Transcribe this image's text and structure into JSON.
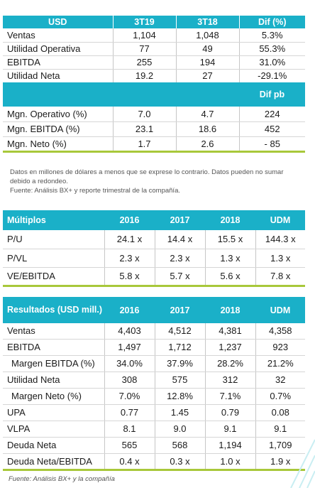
{
  "quarterly": {
    "headers": [
      "USD",
      "3T19",
      "3T18",
      "Dif (%)"
    ],
    "rows": [
      {
        "label": "Ventas",
        "v1": "1,104",
        "v2": "1,048",
        "v3": "5.3%"
      },
      {
        "label": "Utilidad Operativa",
        "v1": "77",
        "v2": "49",
        "v3": "55.3%"
      },
      {
        "label": "EBITDA",
        "v1": "255",
        "v2": "194",
        "v3": "31.0%"
      },
      {
        "label": "Utilidad Neta",
        "v1": "19.2",
        "v2": "27",
        "v3": "-29.1%"
      }
    ],
    "margin_header": "Dif pb",
    "margin_rows": [
      {
        "label": "Mgn. Operativo (%)",
        "v1": "7.0",
        "v2": "4.7",
        "v3": "224"
      },
      {
        "label": "Mgn. EBITDA (%)",
        "v1": "23.1",
        "v2": "18.6",
        "v3": "452"
      },
      {
        "label": "Mgn. Neto (%)",
        "v1": "1.7",
        "v2": "2.6",
        "v3": "- 85"
      }
    ]
  },
  "note": {
    "line1": "Datos en millones de dólares a menos que se exprese lo contrario. Datos pueden no sumar debido a redondeo.",
    "line2": "Fuente: Análisis BX+ y reporte trimestral de la compañía."
  },
  "multiples": {
    "headers": [
      "Múltiplos",
      "2016",
      "2017",
      "2018",
      "UDM"
    ],
    "rows": [
      {
        "label": "P/U",
        "v1": "24.1 x",
        "v2": "14.4 x",
        "v3": "15.5 x",
        "v4": "144.3 x"
      },
      {
        "label": "P/VL",
        "v1": "2.3 x",
        "v2": "2.3 x",
        "v3": "1.3 x",
        "v4": "1.3 x"
      },
      {
        "label": "VE/EBITDA",
        "v1": "5.8 x",
        "v2": "5.7 x",
        "v3": "5.6 x",
        "v4": "7.8 x"
      }
    ]
  },
  "results": {
    "headers": [
      "Resultados (USD mill.)",
      "2016",
      "2017",
      "2018",
      "UDM"
    ],
    "rows": [
      {
        "label": "Ventas",
        "v1": "4,403",
        "v2": "4,512",
        "v3": "4,381",
        "v4": "4,358"
      },
      {
        "label": "EBITDA",
        "v1": "1,497",
        "v2": "1,712",
        "v3": "1,237",
        "v4": "923"
      },
      {
        "label": "Margen EBITDA (%)",
        "v1": "34.0%",
        "v2": "37.9%",
        "v3": "28.2%",
        "v4": "21.2%"
      },
      {
        "label": "Utilidad Neta",
        "v1": "308",
        "v2": "575",
        "v3": "312",
        "v4": "32"
      },
      {
        "label": "Margen Neto (%)",
        "v1": "7.0%",
        "v2": "12.8%",
        "v3": "7.1%",
        "v4": "0.7%"
      },
      {
        "label": "UPA",
        "v1": "0.77",
        "v2": "1.45",
        "v3": "0.79",
        "v4": "0.08"
      },
      {
        "label": "VLPA",
        "v1": "8.1",
        "v2": "9.0",
        "v3": "9.1",
        "v4": "9.1"
      },
      {
        "label": "Deuda Neta",
        "v1": "565",
        "v2": "568",
        "v3": "1,194",
        "v4": "1,709"
      },
      {
        "label": "Deuda Neta/EBITDA",
        "v1": "0.4 x",
        "v2": "0.3 x",
        "v3": "1.0 x",
        "v4": "1.9 x"
      }
    ]
  },
  "footer": "Fuente: Análisis BX+ y la compañía"
}
